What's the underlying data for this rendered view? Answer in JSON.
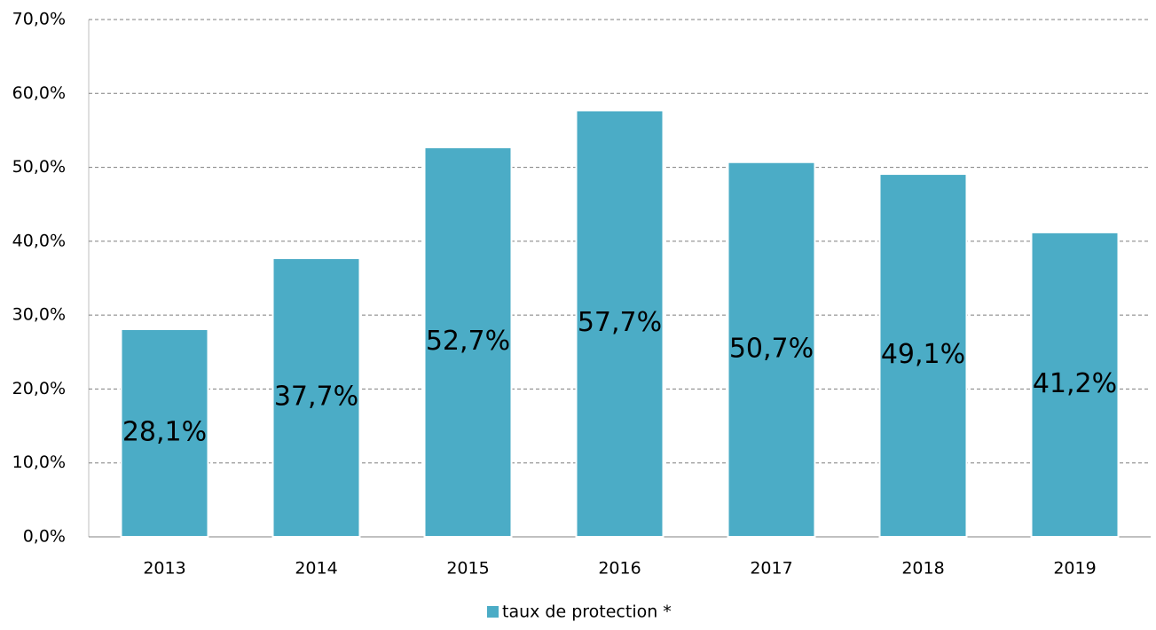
{
  "chart_data": {
    "type": "bar",
    "categories": [
      "2013",
      "2014",
      "2015",
      "2016",
      "2017",
      "2018",
      "2019"
    ],
    "series": [
      {
        "name": "taux de protection *",
        "color": "#4bacc6",
        "values": [
          28.1,
          37.7,
          52.7,
          57.7,
          50.7,
          49.1,
          41.2
        ],
        "value_labels": [
          "28,1%",
          "37,7%",
          "52,7%",
          "57,7%",
          "50,7%",
          "49,1%",
          "41,2%"
        ]
      }
    ],
    "ylim": [
      0,
      70
    ],
    "yticks": [
      {
        "value": 0,
        "label": "0,0%"
      },
      {
        "value": 10,
        "label": "10,0%"
      },
      {
        "value": 20,
        "label": "20,0%"
      },
      {
        "value": 30,
        "label": "30,0%"
      },
      {
        "value": 40,
        "label": "40,0%"
      },
      {
        "value": 50,
        "label": "50,0%"
      },
      {
        "value": 60,
        "label": "60,0%"
      },
      {
        "value": 70,
        "label": "70,0%"
      }
    ],
    "grid": true,
    "legend": "bottom"
  }
}
